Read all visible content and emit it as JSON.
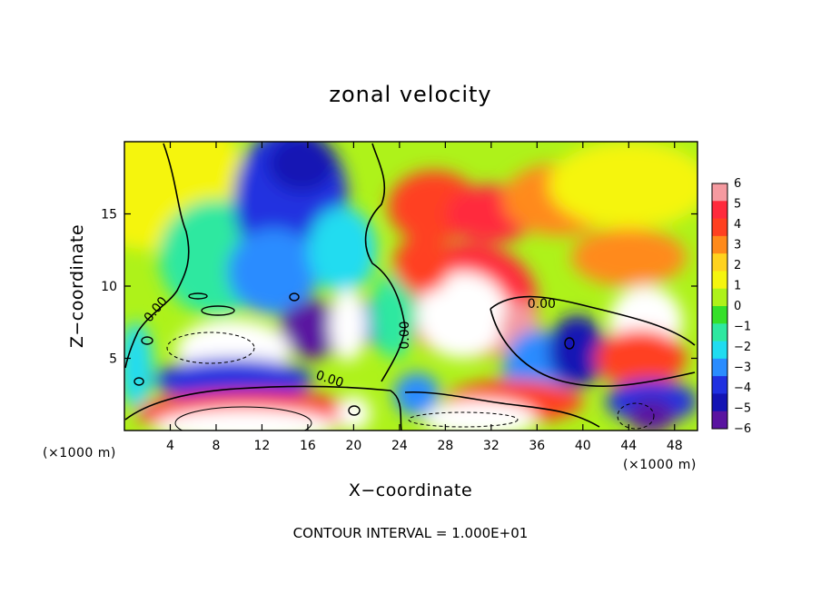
{
  "chart_data": {
    "type": "heatmap",
    "title": "zonal velocity",
    "xlabel": "X−coordinate",
    "ylabel": "Z−coordinate",
    "x_unit_left": "(×1000 m)",
    "x_unit_right": "(×1000 m)",
    "footer": "CONTOUR INTERVAL = 1.000E+01",
    "xlim": [
      0,
      50
    ],
    "ylim": [
      0,
      20
    ],
    "x_ticks": [
      4,
      8,
      12,
      16,
      20,
      24,
      28,
      32,
      36,
      40,
      44,
      48
    ],
    "y_ticks": [
      5,
      10,
      15
    ],
    "colorbar": {
      "min": -6,
      "max": 6,
      "labels": [
        "6",
        "5",
        "4",
        "3",
        "2",
        "1",
        "0",
        "−1",
        "−2",
        "−3",
        "−4",
        "−5",
        "−6"
      ],
      "colors": [
        "#f59aa0",
        "#ff2a3c",
        "#ff4020",
        "#ff8a1a",
        "#ffd21e",
        "#f5f50f",
        "#aef21a",
        "#35e02a",
        "#2ee8a0",
        "#20dcf0",
        "#2a8cff",
        "#2030e0",
        "#1414b4",
        "#5a14a0"
      ]
    },
    "contour_labels": [
      {
        "text": "0.00",
        "x": 3.0,
        "y": 8.2,
        "rotate": -50
      },
      {
        "text": "0.00",
        "x": 17.8,
        "y": 3.3,
        "rotate": 18
      },
      {
        "text": "0.00",
        "x": 24.8,
        "y": 6.6,
        "rotate": -90
      },
      {
        "text": "0.00",
        "x": 36.4,
        "y": 8.5,
        "rotate": 0
      }
    ],
    "blobs": [
      {
        "x": 2.5,
        "y": 17.5,
        "rx": 8,
        "ry": 5,
        "v": 1.0
      },
      {
        "x": 8.0,
        "y": 12.0,
        "rx": 5,
        "ry": 4,
        "v": -1.0
      },
      {
        "x": 14.5,
        "y": 16.0,
        "rx": 5,
        "ry": 5,
        "v": -3.5
      },
      {
        "x": 15.5,
        "y": 18.5,
        "rx": 3,
        "ry": 2,
        "v": -5.0
      },
      {
        "x": 13.0,
        "y": 11.0,
        "rx": 4,
        "ry": 3,
        "v": -3.0
      },
      {
        "x": 19.0,
        "y": 12.5,
        "rx": 3,
        "ry": 3,
        "v": -2.0
      },
      {
        "x": 16.5,
        "y": 7.0,
        "rx": 3,
        "ry": 2,
        "v": -5.5
      },
      {
        "x": 21.5,
        "y": 7.5,
        "rx": 2,
        "ry": 1.5,
        "v": -4.0
      },
      {
        "x": 9.5,
        "y": 5.5,
        "rx": 5,
        "ry": 2.2,
        "v": 7.0
      },
      {
        "x": 9.5,
        "y": 3.5,
        "rx": 7,
        "ry": 1.5,
        "v": -3.5
      },
      {
        "x": 1.0,
        "y": 4.5,
        "rx": 1.5,
        "ry": 3,
        "v": -2.0
      },
      {
        "x": 11.0,
        "y": 1.2,
        "rx": 10,
        "ry": 1.5,
        "v": 5.0
      },
      {
        "x": 10.5,
        "y": 0.3,
        "rx": 8,
        "ry": 1.2,
        "v": 7.0
      },
      {
        "x": 20.0,
        "y": 1.2,
        "rx": 1.5,
        "ry": 1.2,
        "v": 7.0
      },
      {
        "x": 19.5,
        "y": 7.3,
        "rx": 1.6,
        "ry": 2.5,
        "v": 7.0
      },
      {
        "x": 27.0,
        "y": 15.5,
        "rx": 4,
        "ry": 2.5,
        "v": 3.5
      },
      {
        "x": 32.0,
        "y": 15.0,
        "rx": 4,
        "ry": 2,
        "v": 4.5
      },
      {
        "x": 38.0,
        "y": 16.0,
        "rx": 5,
        "ry": 2.5,
        "v": 3.0
      },
      {
        "x": 44.0,
        "y": 17.0,
        "rx": 7,
        "ry": 3,
        "v": 1.5
      },
      {
        "x": 44.0,
        "y": 12.0,
        "rx": 5,
        "ry": 2,
        "v": 3.0
      },
      {
        "x": 30.0,
        "y": 9.0,
        "rx": 6,
        "ry": 4,
        "v": 4.5
      },
      {
        "x": 29.5,
        "y": 8.0,
        "rx": 4,
        "ry": 3,
        "v": 7.0
      },
      {
        "x": 34.5,
        "y": 6.5,
        "rx": 1.8,
        "ry": 2.5,
        "v": 5.5
      },
      {
        "x": 36.0,
        "y": 4.0,
        "rx": 3,
        "ry": 3,
        "v": -3.0
      },
      {
        "x": 39.5,
        "y": 5.5,
        "rx": 2.5,
        "ry": 2.5,
        "v": -5.0
      },
      {
        "x": 45.5,
        "y": 7.5,
        "rx": 3.2,
        "ry": 2.5,
        "v": 7.0
      },
      {
        "x": 45.0,
        "y": 5.0,
        "rx": 4,
        "ry": 2,
        "v": 4.0
      },
      {
        "x": 46.0,
        "y": 2.0,
        "rx": 4,
        "ry": 1.5,
        "v": -3.5
      },
      {
        "x": 46.0,
        "y": 1.0,
        "rx": 2,
        "ry": 1.2,
        "v": -5.5
      },
      {
        "x": 34.0,
        "y": 2.0,
        "rx": 6,
        "ry": 1.5,
        "v": 4.0
      },
      {
        "x": 31.0,
        "y": 0.8,
        "rx": 5,
        "ry": 1.3,
        "v": 7.0
      },
      {
        "x": 25.5,
        "y": 2.5,
        "rx": 2,
        "ry": 1.5,
        "v": -3.0
      },
      {
        "x": 23.5,
        "y": 8.0,
        "rx": 2,
        "ry": 3,
        "v": -1.0
      },
      {
        "x": 26.0,
        "y": 11.5,
        "rx": 2.5,
        "ry": 2,
        "v": 4.0
      }
    ]
  }
}
